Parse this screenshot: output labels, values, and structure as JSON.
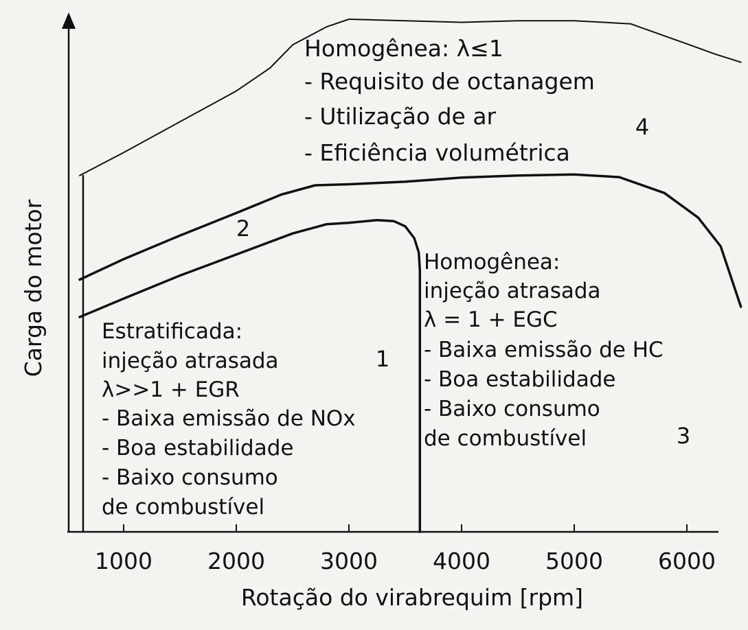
{
  "chart_data": {
    "type": "area",
    "xlabel": "Rotação do virabrequim [rpm]",
    "ylabel": "Carga do motor",
    "x_ticks": [
      1000,
      2000,
      3000,
      4000,
      5000,
      6000
    ],
    "xlim": [
      500,
      6600
    ],
    "ylim": [
      0,
      100
    ],
    "grid": false,
    "boundaries": [
      {
        "name": "upper_limit",
        "points": [
          [
            610,
            69.5
          ],
          [
            1000,
            74
          ],
          [
            1500,
            80
          ],
          [
            2000,
            86
          ],
          [
            2300,
            90.5
          ],
          [
            2500,
            95
          ],
          [
            2800,
            98.5
          ],
          [
            3000,
            100
          ],
          [
            3500,
            99.7
          ],
          [
            4000,
            99.4
          ],
          [
            4500,
            99.7
          ],
          [
            5000,
            99.7
          ],
          [
            5500,
            99.1
          ],
          [
            6000,
            95.2
          ],
          [
            6250,
            93.2
          ],
          [
            6480,
            91.6
          ]
        ]
      },
      {
        "name": "boundary_2_4",
        "points": [
          [
            610,
            49.2
          ],
          [
            1000,
            53.2
          ],
          [
            1500,
            57.8
          ],
          [
            2000,
            62.2
          ],
          [
            2400,
            65.8
          ],
          [
            2700,
            67.6
          ],
          [
            3000,
            67.8
          ],
          [
            3500,
            68.3
          ],
          [
            4000,
            69.1
          ],
          [
            4500,
            69.5
          ],
          [
            5000,
            69.7
          ],
          [
            5400,
            69.2
          ],
          [
            5800,
            66.1
          ],
          [
            6100,
            61.3
          ],
          [
            6300,
            55.7
          ],
          [
            6480,
            43.9
          ]
        ]
      },
      {
        "name": "boundary_1_2",
        "points": [
          [
            610,
            41.9
          ],
          [
            1000,
            45.5
          ],
          [
            1500,
            50.0
          ],
          [
            2000,
            54.1
          ],
          [
            2500,
            58.2
          ],
          [
            2800,
            60.0
          ],
          [
            3000,
            60.3
          ],
          [
            3250,
            60.8
          ],
          [
            3400,
            60.6
          ],
          [
            3500,
            59.6
          ],
          [
            3580,
            57.3
          ],
          [
            3620,
            54.5
          ],
          [
            3630,
            51.0
          ],
          [
            3630,
            0
          ]
        ]
      }
    ],
    "regions": [
      {
        "number": "1",
        "lines": [
          "Estratificada:",
          "injeção atrasada",
          "λ>>1 + EGR",
          "- Baixa emissão de NOx",
          "- Boa estabilidade",
          "- Baixo consumo",
          "de combustível"
        ]
      },
      {
        "number": "2",
        "lines": []
      },
      {
        "number": "3",
        "lines": [
          "Homogênea:",
          "injeção atrasada",
          "λ = 1 + EGC",
          "- Baixa emissão de HC",
          "- Boa estabilidade",
          "- Baixo consumo",
          "de combustível"
        ]
      },
      {
        "number": "4",
        "lines": [
          "Homogênea: λ≤1",
          "- Requisito de octanagem",
          "- Utilização de ar",
          "- Eficiência volumétrica"
        ]
      }
    ]
  }
}
